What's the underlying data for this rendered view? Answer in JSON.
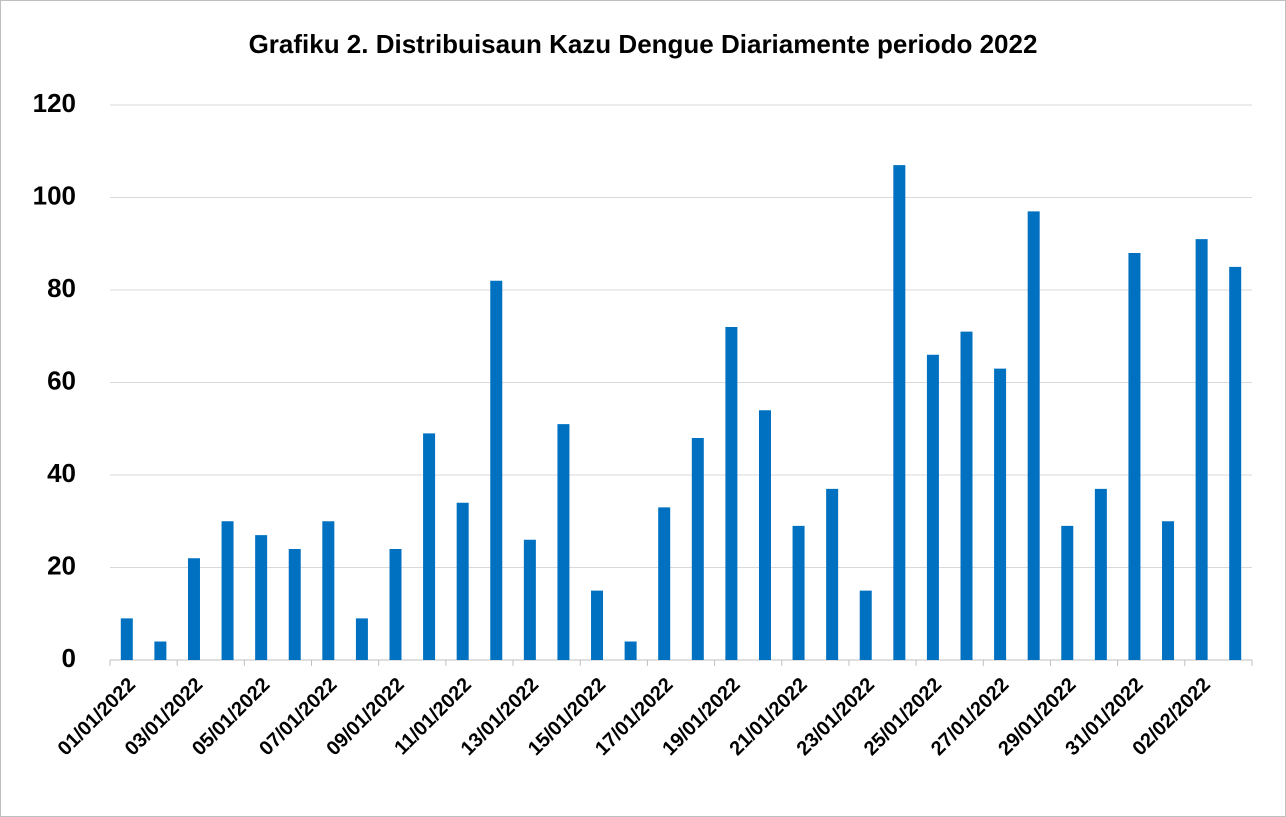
{
  "chart_data": {
    "type": "bar",
    "title": "Grafiku 2. Distribuisaun Kazu Dengue Diariamente periodo 2022",
    "categories": [
      "01/01/2022",
      null,
      "03/01/2022",
      null,
      "05/01/2022",
      null,
      "07/01/2022",
      null,
      "09/01/2022",
      null,
      "11/01/2022",
      null,
      "13/01/2022",
      null,
      "15/01/2022",
      null,
      "17/01/2022",
      null,
      "19/01/2022",
      null,
      "21/01/2022",
      null,
      "23/01/2022",
      null,
      "25/01/2022",
      null,
      "27/01/2022",
      null,
      "29/01/2022",
      null,
      "31/01/2022",
      null,
      "02/02/2022",
      null
    ],
    "values": [
      9,
      4,
      22,
      30,
      27,
      24,
      30,
      9,
      24,
      49,
      34,
      82,
      26,
      51,
      15,
      4,
      33,
      48,
      72,
      54,
      29,
      37,
      15,
      107,
      66,
      71,
      63,
      97,
      29,
      37,
      88,
      30,
      91,
      85
    ],
    "color": "#0070c0",
    "ylim": [
      0,
      120
    ],
    "yticks": [
      0,
      20,
      40,
      60,
      80,
      100,
      120
    ],
    "grid": true
  }
}
